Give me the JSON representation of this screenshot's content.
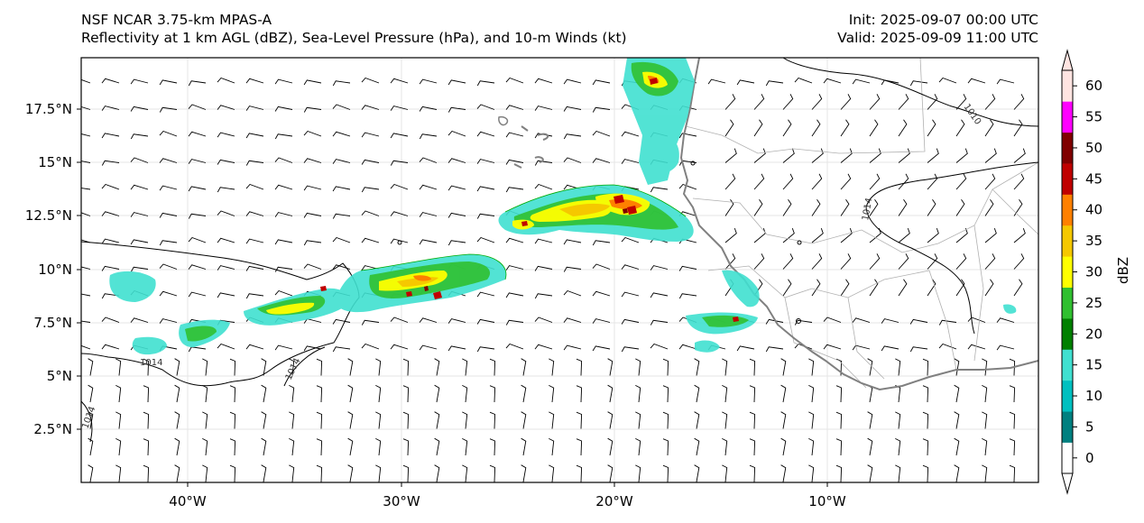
{
  "header": {
    "model": "NSF NCAR 3.75-km MPAS-A",
    "product": "Reflectivity at 1 km AGL (dBZ), Sea-Level Pressure (hPa), and 10-m Winds (kt)",
    "init": "Init: 2025-09-07 00:00 UTC",
    "valid": "Valid: 2025-09-09 11:00 UTC"
  },
  "map": {
    "lat_labels": [
      "17.5°N",
      "15°N",
      "12.5°N",
      "10°N",
      "7.5°N",
      "5°N",
      "2.5°N"
    ],
    "lon_labels": [
      "40°W",
      "30°W",
      "20°W",
      "10°W"
    ],
    "isobar_labels": [
      "1014",
      "1014",
      "1014",
      "1014",
      "1010"
    ]
  },
  "colorbar": {
    "label": "dBZ",
    "ticks": [
      "0",
      "5",
      "10",
      "15",
      "20",
      "25",
      "30",
      "35",
      "40",
      "45",
      "50",
      "55",
      "60"
    ],
    "colors": [
      "#ffffff",
      "#008080",
      "#00c0c0",
      "#40e0d0",
      "#008000",
      "#30c030",
      "#ffff00",
      "#f5c800",
      "#ff8000",
      "#c00000",
      "#800000",
      "#ff00ff",
      "#ffe4e1"
    ]
  }
}
